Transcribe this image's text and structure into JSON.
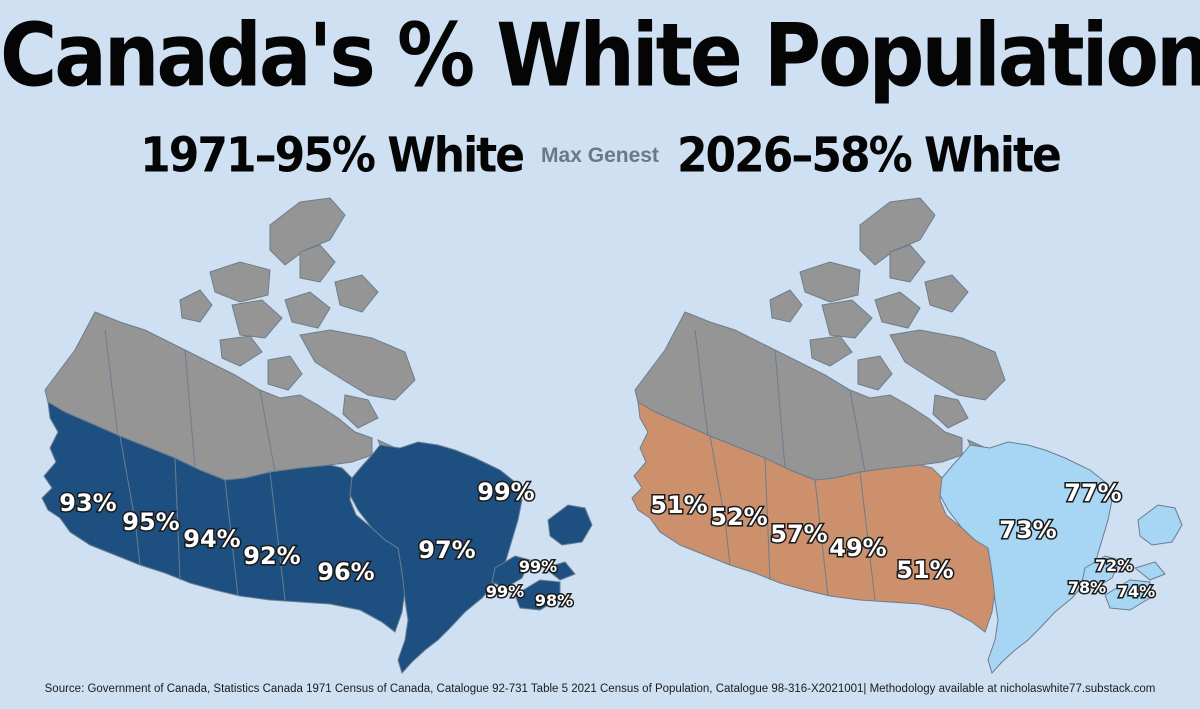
{
  "title": "Canada's % White Population",
  "subtitle_left": "1971–95% White",
  "author": "Max Genest",
  "subtitle_right": "2026–58% White",
  "colors": {
    "background": "#cfe0f3",
    "territories": "#959595",
    "map_1971": "#1d5080",
    "map_2026_west": "#cc906d",
    "map_2026_east": "#a6d6f3",
    "borders": "#6b7d8f"
  },
  "map_1971": {
    "labels": {
      "bc": "93%",
      "ab": "95%",
      "sk": "94%",
      "mb": "92%",
      "on": "96%",
      "qc": "97%",
      "nl": "99%",
      "pe": "99%",
      "nb": "99%",
      "ns": "98%"
    }
  },
  "map_2026": {
    "labels": {
      "bc": "51%",
      "ab": "52%",
      "sk": "57%",
      "mb": "49%",
      "on": "51%",
      "qc": "73%",
      "nl": "77%",
      "pe": "72%",
      "nb": "78%",
      "ns": "74%"
    }
  },
  "source": "Source: Government of Canada, Statistics Canada 1971 Census of Canada, Catalogue 92-731 Table 5 2021 Census of Population, Catalogue 98-316-X2021001| Methodology available at nicholaswhite77.substack.com"
}
